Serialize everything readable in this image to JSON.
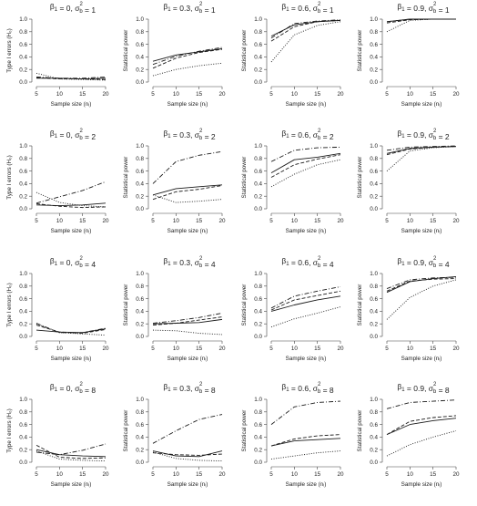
{
  "figure": {
    "x_axis_label": "Sample size (nᵢ)",
    "row_sigmas": [
      "1",
      "2",
      "4",
      "8"
    ],
    "col_betas": [
      "0",
      "0.3",
      "0.6",
      "0.9"
    ],
    "ylabel_type1": "Type I errors (H₀)",
    "ylabel_power": "Statistical power",
    "x_ticks": [
      5,
      10,
      15,
      20
    ],
    "y_ticks": [
      "0.0",
      "0.2",
      "0.4",
      "0.6",
      "0.8",
      "1.0"
    ],
    "styles": [
      "solid",
      "dashed",
      "dotted",
      "dashdot"
    ]
  },
  "chart_data": [
    {
      "type": "line",
      "title": "β₁ = 0, σ²ᵦ = 1",
      "xlabel": "Sample size (nᵢ)",
      "ylabel": "Type I errors (H₀)",
      "x": [
        5,
        10,
        15,
        20
      ],
      "ylim": [
        0,
        1
      ],
      "series": [
        {
          "style": "solid",
          "values": [
            0.06,
            0.06,
            0.05,
            0.06
          ]
        },
        {
          "style": "dashed",
          "values": [
            0.07,
            0.05,
            0.05,
            0.04
          ]
        },
        {
          "style": "dotted",
          "values": [
            0.14,
            0.05,
            0.04,
            0.03
          ]
        },
        {
          "style": "dashdot",
          "values": [
            0.08,
            0.06,
            0.06,
            0.08
          ]
        }
      ]
    },
    {
      "type": "line",
      "title": "β₁ = 0.3, σ²ᵦ = 1",
      "xlabel": "Sample size (nᵢ)",
      "ylabel": "Statistical power",
      "x": [
        5,
        10,
        15,
        20
      ],
      "ylim": [
        0,
        1
      ],
      "series": [
        {
          "style": "solid",
          "values": [
            0.33,
            0.43,
            0.48,
            0.53
          ]
        },
        {
          "style": "dashed",
          "values": [
            0.22,
            0.38,
            0.47,
            0.52
          ]
        },
        {
          "style": "dotted",
          "values": [
            0.1,
            0.2,
            0.26,
            0.3
          ]
        },
        {
          "style": "dashdot",
          "values": [
            0.28,
            0.41,
            0.49,
            0.55
          ]
        }
      ]
    },
    {
      "type": "line",
      "title": "β₁ = 0.6, σ²ᵦ = 1",
      "xlabel": "Sample size (nᵢ)",
      "ylabel": "Statistical power",
      "x": [
        5,
        10,
        15,
        20
      ],
      "ylim": [
        0,
        1
      ],
      "series": [
        {
          "style": "solid",
          "values": [
            0.73,
            0.91,
            0.96,
            0.98
          ]
        },
        {
          "style": "dashed",
          "values": [
            0.65,
            0.88,
            0.96,
            0.98
          ]
        },
        {
          "style": "dotted",
          "values": [
            0.32,
            0.75,
            0.9,
            0.96
          ]
        },
        {
          "style": "dashdot",
          "values": [
            0.7,
            0.93,
            0.97,
            0.99
          ]
        }
      ]
    },
    {
      "type": "line",
      "title": "β₁ = 0.9, σ²ᵦ = 1",
      "xlabel": "Sample size (nᵢ)",
      "ylabel": "Statistical power",
      "x": [
        5,
        10,
        15,
        20
      ],
      "ylim": [
        0,
        1
      ],
      "series": [
        {
          "style": "solid",
          "values": [
            0.96,
            1.0,
            1.0,
            1.0
          ]
        },
        {
          "style": "dashed",
          "values": [
            0.94,
            0.99,
            1.0,
            1.0
          ]
        },
        {
          "style": "dotted",
          "values": [
            0.8,
            0.98,
            1.0,
            1.0
          ]
        },
        {
          "style": "dashdot",
          "values": [
            0.96,
            1.0,
            1.0,
            1.0
          ]
        }
      ]
    },
    {
      "type": "line",
      "title": "β₁ = 0, σ²ᵦ = 2",
      "xlabel": "Sample size (nᵢ)",
      "ylabel": "Type I errors (H₀)",
      "x": [
        5,
        10,
        15,
        20
      ],
      "ylim": [
        0,
        1
      ],
      "series": [
        {
          "style": "solid",
          "values": [
            0.06,
            0.05,
            0.06,
            0.09
          ]
        },
        {
          "style": "dashed",
          "values": [
            0.08,
            0.04,
            0.02,
            0.03
          ]
        },
        {
          "style": "dotted",
          "values": [
            0.26,
            0.1,
            0.05,
            0.03
          ]
        },
        {
          "style": "dashdot",
          "values": [
            0.09,
            0.19,
            0.29,
            0.43
          ]
        }
      ]
    },
    {
      "type": "line",
      "title": "β₁ = 0.3, σ²ᵦ = 2",
      "xlabel": "Sample size (nᵢ)",
      "ylabel": "Statistical power",
      "x": [
        5,
        10,
        15,
        20
      ],
      "ylim": [
        0,
        1
      ],
      "series": [
        {
          "style": "solid",
          "values": [
            0.22,
            0.32,
            0.35,
            0.38
          ]
        },
        {
          "style": "dashed",
          "values": [
            0.15,
            0.27,
            0.31,
            0.37
          ]
        },
        {
          "style": "dotted",
          "values": [
            0.22,
            0.1,
            0.12,
            0.15
          ]
        },
        {
          "style": "dashdot",
          "values": [
            0.4,
            0.75,
            0.85,
            0.91
          ]
        }
      ]
    },
    {
      "type": "line",
      "title": "β₁ = 0.6, σ²ᵦ = 2",
      "xlabel": "Sample size (nᵢ)",
      "ylabel": "Statistical power",
      "x": [
        5,
        10,
        15,
        20
      ],
      "ylim": [
        0,
        1
      ],
      "series": [
        {
          "style": "solid",
          "values": [
            0.57,
            0.78,
            0.82,
            0.88
          ]
        },
        {
          "style": "dashed",
          "values": [
            0.5,
            0.7,
            0.79,
            0.86
          ]
        },
        {
          "style": "dotted",
          "values": [
            0.35,
            0.55,
            0.7,
            0.78
          ]
        },
        {
          "style": "dashdot",
          "values": [
            0.75,
            0.93,
            0.97,
            0.98
          ]
        }
      ]
    },
    {
      "type": "line",
      "title": "β₁ = 0.9, σ²ᵦ = 2",
      "xlabel": "Sample size (nᵢ)",
      "ylabel": "Statistical power",
      "x": [
        5,
        10,
        15,
        20
      ],
      "ylim": [
        0,
        1
      ],
      "series": [
        {
          "style": "solid",
          "values": [
            0.88,
            0.96,
            0.98,
            0.99
          ]
        },
        {
          "style": "dashed",
          "values": [
            0.86,
            0.95,
            0.98,
            0.99
          ]
        },
        {
          "style": "dotted",
          "values": [
            0.6,
            0.92,
            0.97,
            0.99
          ]
        },
        {
          "style": "dashdot",
          "values": [
            0.93,
            0.98,
            0.99,
            1.0
          ]
        }
      ]
    },
    {
      "type": "line",
      "title": "β₁ = 0, σ²ᵦ = 4",
      "xlabel": "Sample size (nᵢ)",
      "ylabel": "Type I errors (H₀)",
      "x": [
        5,
        10,
        15,
        20
      ],
      "ylim": [
        0,
        1
      ],
      "series": [
        {
          "style": "solid",
          "values": [
            0.1,
            0.07,
            0.06,
            0.12
          ]
        },
        {
          "style": "dashed",
          "values": [
            0.18,
            0.07,
            0.05,
            0.11
          ]
        },
        {
          "style": "dotted",
          "values": [
            0.2,
            0.06,
            0.04,
            0.02
          ]
        },
        {
          "style": "dashdot",
          "values": [
            0.21,
            0.06,
            0.06,
            0.13
          ]
        }
      ]
    },
    {
      "type": "line",
      "title": "β₁ = 0.3, σ²ᵦ = 4",
      "xlabel": "Sample size (nᵢ)",
      "ylabel": "Statistical power",
      "x": [
        5,
        10,
        15,
        20
      ],
      "ylim": [
        0,
        1
      ],
      "series": [
        {
          "style": "solid",
          "values": [
            0.2,
            0.21,
            0.22,
            0.27
          ]
        },
        {
          "style": "dashed",
          "values": [
            0.18,
            0.21,
            0.26,
            0.31
          ]
        },
        {
          "style": "dotted",
          "values": [
            0.1,
            0.09,
            0.05,
            0.03
          ]
        },
        {
          "style": "dashdot",
          "values": [
            0.21,
            0.25,
            0.3,
            0.37
          ]
        }
      ]
    },
    {
      "type": "line",
      "title": "β₁ = 0.6, σ²ᵦ = 4",
      "xlabel": "Sample size (nᵢ)",
      "ylabel": "Statistical power",
      "x": [
        5,
        10,
        15,
        20
      ],
      "ylim": [
        0,
        1
      ],
      "series": [
        {
          "style": "solid",
          "values": [
            0.4,
            0.5,
            0.58,
            0.64
          ]
        },
        {
          "style": "dashed",
          "values": [
            0.42,
            0.58,
            0.65,
            0.72
          ]
        },
        {
          "style": "dotted",
          "values": [
            0.15,
            0.28,
            0.37,
            0.47
          ]
        },
        {
          "style": "dashdot",
          "values": [
            0.45,
            0.64,
            0.72,
            0.79
          ]
        }
      ]
    },
    {
      "type": "line",
      "title": "β₁ = 0.9, σ²ᵦ = 4",
      "xlabel": "Sample size (nᵢ)",
      "ylabel": "Statistical power",
      "x": [
        5,
        10,
        15,
        20
      ],
      "ylim": [
        0,
        1
      ],
      "series": [
        {
          "style": "solid",
          "values": [
            0.7,
            0.87,
            0.92,
            0.95
          ]
        },
        {
          "style": "dashed",
          "values": [
            0.72,
            0.88,
            0.91,
            0.92
          ]
        },
        {
          "style": "dotted",
          "values": [
            0.27,
            0.62,
            0.8,
            0.9
          ]
        },
        {
          "style": "dashdot",
          "values": [
            0.76,
            0.9,
            0.93,
            0.94
          ]
        }
      ]
    },
    {
      "type": "line",
      "title": "β₁ = 0, σ²ᵦ = 8",
      "xlabel": "Sample size (nᵢ)",
      "ylabel": "Type I errors (H₀)",
      "x": [
        5,
        10,
        15,
        20
      ],
      "ylim": [
        0,
        1
      ],
      "series": [
        {
          "style": "solid",
          "values": [
            0.2,
            0.12,
            0.1,
            0.09
          ]
        },
        {
          "style": "dashed",
          "values": [
            0.27,
            0.08,
            0.06,
            0.07
          ]
        },
        {
          "style": "dotted",
          "values": [
            0.18,
            0.05,
            0.03,
            0.02
          ]
        },
        {
          "style": "dashdot",
          "values": [
            0.16,
            0.12,
            0.19,
            0.29
          ]
        }
      ]
    },
    {
      "type": "line",
      "title": "β₁ = 0.3, σ²ᵦ = 8",
      "xlabel": "Sample size (nᵢ)",
      "ylabel": "Statistical power",
      "x": [
        5,
        10,
        15,
        20
      ],
      "ylim": [
        0,
        1
      ],
      "series": [
        {
          "style": "solid",
          "values": [
            0.18,
            0.1,
            0.09,
            0.18
          ]
        },
        {
          "style": "dashed",
          "values": [
            0.15,
            0.12,
            0.11,
            0.13
          ]
        },
        {
          "style": "dotted",
          "values": [
            0.16,
            0.06,
            0.03,
            0.02
          ]
        },
        {
          "style": "dashdot",
          "values": [
            0.3,
            0.5,
            0.68,
            0.76
          ]
        }
      ]
    },
    {
      "type": "line",
      "title": "β₁ = 0.6, σ²ᵦ = 8",
      "xlabel": "Sample size (nᵢ)",
      "ylabel": "Statistical power",
      "x": [
        5,
        10,
        15,
        20
      ],
      "ylim": [
        0,
        1
      ],
      "series": [
        {
          "style": "solid",
          "values": [
            0.26,
            0.34,
            0.36,
            0.38
          ]
        },
        {
          "style": "dashed",
          "values": [
            0.26,
            0.37,
            0.42,
            0.44
          ]
        },
        {
          "style": "dotted",
          "values": [
            0.05,
            0.1,
            0.15,
            0.18
          ]
        },
        {
          "style": "dashdot",
          "values": [
            0.6,
            0.88,
            0.95,
            0.97
          ]
        }
      ]
    },
    {
      "type": "line",
      "title": "β₁ = 0.9, σ²ᵦ = 8",
      "xlabel": "Sample size (nᵢ)",
      "ylabel": "Statistical power",
      "x": [
        5,
        10,
        15,
        20
      ],
      "ylim": [
        0,
        1
      ],
      "series": [
        {
          "style": "solid",
          "values": [
            0.44,
            0.6,
            0.66,
            0.7
          ]
        },
        {
          "style": "dashed",
          "values": [
            0.44,
            0.65,
            0.71,
            0.74
          ]
        },
        {
          "style": "dotted",
          "values": [
            0.1,
            0.28,
            0.4,
            0.5
          ]
        },
        {
          "style": "dashdot",
          "values": [
            0.85,
            0.95,
            0.97,
            0.99
          ]
        }
      ]
    }
  ]
}
